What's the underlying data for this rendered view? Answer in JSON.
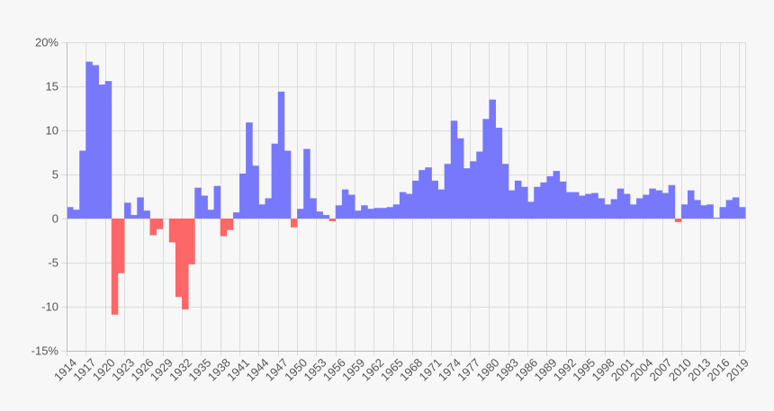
{
  "chart_data": {
    "type": "bar",
    "title": "",
    "xlabel": "",
    "ylabel": "",
    "ylim": [
      -15,
      20
    ],
    "grid": true,
    "legend": "none",
    "y_tick_values": [
      20,
      15,
      10,
      5,
      0,
      -5,
      -10,
      -15
    ],
    "y_tick_labels": [
      "20%",
      "15",
      "10",
      "5",
      "0",
      "-5",
      "-10",
      "-15%"
    ],
    "x_tick_labels": [
      "1914",
      "1917",
      "1920",
      "1923",
      "1926",
      "1929",
      "1932",
      "1935",
      "1938",
      "1941",
      "1944",
      "1947",
      "1950",
      "1953",
      "1956",
      "1959",
      "1962",
      "1965",
      "1968",
      "1971",
      "1974",
      "1977",
      "1980",
      "1983",
      "1986",
      "1989",
      "1992",
      "1995",
      "1998",
      "2001",
      "2004",
      "2007",
      "2010",
      "2013",
      "2016",
      "2019"
    ],
    "colors": {
      "positive": "#7878fd",
      "negative": "#fe6767",
      "grid": "#dcdcdc",
      "text": "#555555"
    },
    "categories": [
      "1914",
      "1915",
      "1916",
      "1917",
      "1918",
      "1919",
      "1920",
      "1921",
      "1922",
      "1923",
      "1924",
      "1925",
      "1926",
      "1927",
      "1928",
      "1929",
      "1930",
      "1931",
      "1932",
      "1933",
      "1934",
      "1935",
      "1936",
      "1937",
      "1938",
      "1939",
      "1940",
      "1941",
      "1942",
      "1943",
      "1944",
      "1945",
      "1946",
      "1947",
      "1948",
      "1949",
      "1950",
      "1951",
      "1952",
      "1953",
      "1954",
      "1955",
      "1956",
      "1957",
      "1958",
      "1959",
      "1960",
      "1961",
      "1962",
      "1963",
      "1964",
      "1965",
      "1966",
      "1967",
      "1968",
      "1969",
      "1970",
      "1971",
      "1972",
      "1973",
      "1974",
      "1975",
      "1976",
      "1977",
      "1978",
      "1979",
      "1980",
      "1981",
      "1982",
      "1983",
      "1984",
      "1985",
      "1986",
      "1987",
      "1988",
      "1989",
      "1990",
      "1991",
      "1992",
      "1993",
      "1994",
      "1995",
      "1996",
      "1997",
      "1998",
      "1999",
      "2000",
      "2001",
      "2002",
      "2003",
      "2004",
      "2005",
      "2006",
      "2007",
      "2008",
      "2009",
      "2010",
      "2011",
      "2012",
      "2013",
      "2014",
      "2015",
      "2016",
      "2017",
      "2018",
      "2019"
    ],
    "values": [
      1.3,
      1.0,
      7.7,
      17.8,
      17.4,
      15.2,
      15.6,
      -10.9,
      -6.2,
      1.8,
      0.4,
      2.4,
      0.9,
      -1.9,
      -1.2,
      0.0,
      -2.7,
      -8.9,
      -10.3,
      -5.2,
      3.5,
      2.6,
      1.0,
      3.7,
      -2.0,
      -1.3,
      0.7,
      5.1,
      10.9,
      6.0,
      1.6,
      2.3,
      8.5,
      14.4,
      7.7,
      -1.0,
      1.1,
      7.9,
      2.3,
      0.8,
      0.4,
      -0.3,
      1.5,
      3.3,
      2.7,
      0.9,
      1.5,
      1.1,
      1.2,
      1.2,
      1.3,
      1.6,
      3.0,
      2.8,
      4.3,
      5.5,
      5.8,
      4.3,
      3.3,
      6.2,
      11.1,
      9.1,
      5.7,
      6.5,
      7.6,
      11.3,
      13.5,
      10.3,
      6.2,
      3.2,
      4.3,
      3.6,
      1.9,
      3.6,
      4.1,
      4.8,
      5.4,
      4.2,
      3.0,
      3.0,
      2.6,
      2.8,
      2.9,
      2.3,
      1.6,
      2.2,
      3.4,
      2.8,
      1.6,
      2.3,
      2.7,
      3.4,
      3.2,
      2.9,
      3.8,
      -0.4,
      1.6,
      3.2,
      2.1,
      1.5,
      1.6,
      0.1,
      1.3,
      2.1,
      2.4,
      1.3
    ]
  }
}
